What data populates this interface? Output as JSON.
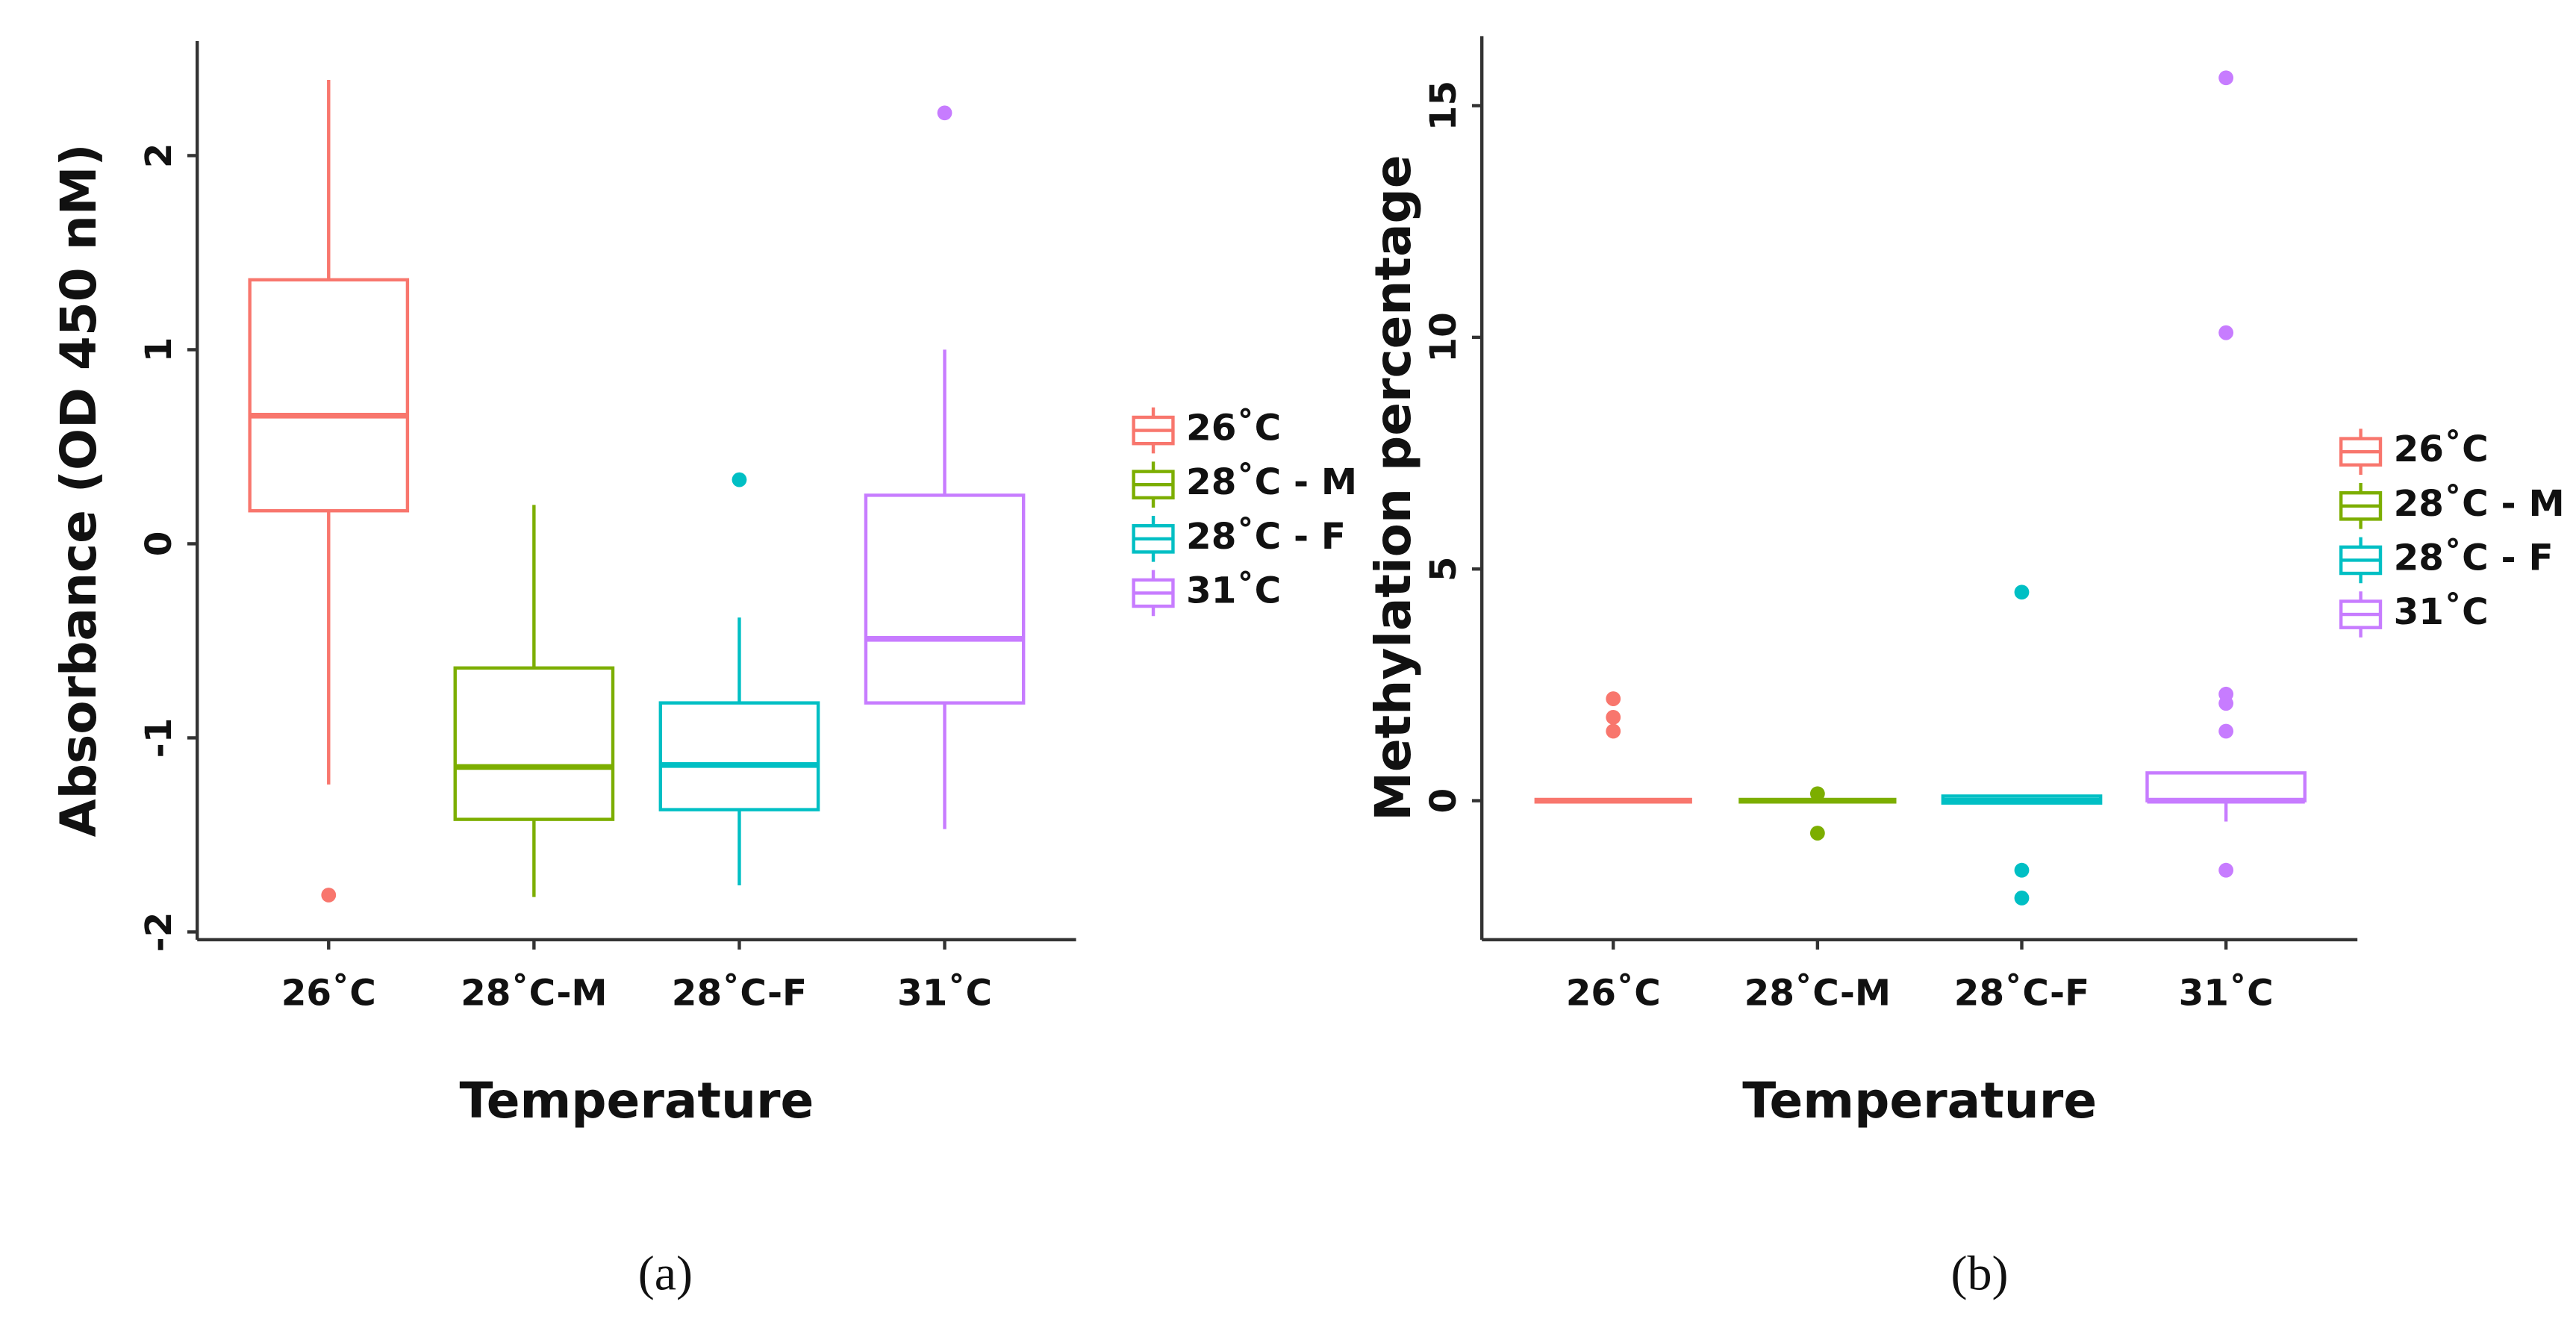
{
  "chart_data": [
    {
      "type": "box",
      "panel_label": "(a)",
      "ylabel": "Absorbance  (OD 450 nM)",
      "xlabel": "Temperature",
      "categories": [
        "26˚C",
        "28˚C-M",
        "28˚C-F",
        "31˚C"
      ],
      "legend": [
        "26˚C",
        "28˚C - M",
        "28˚C - F",
        "31˚C"
      ],
      "colors": [
        "#f8766d",
        "#7cae00",
        "#00bfc4",
        "#c77cff"
      ],
      "boxes": [
        {
          "min": -1.24,
          "q1": 0.17,
          "median": 0.66,
          "q3": 1.36,
          "max": 2.39,
          "outliers": [
            -1.81
          ]
        },
        {
          "min": -1.82,
          "q1": -1.42,
          "median": -1.15,
          "q3": -0.64,
          "max": 0.2,
          "outliers": []
        },
        {
          "min": -1.76,
          "q1": -1.37,
          "median": -1.14,
          "q3": -0.82,
          "max": -0.38,
          "outliers": [
            0.33
          ]
        },
        {
          "min": -1.47,
          "q1": -0.82,
          "median": -0.49,
          "q3": 0.25,
          "max": 1.0,
          "outliers": [
            2.22
          ]
        }
      ],
      "ylim": [
        -2.04,
        2.59
      ],
      "yticks": [
        -2,
        -1,
        0,
        1,
        2
      ]
    },
    {
      "type": "box",
      "panel_label": "(b)",
      "ylabel": "Methylation percentage",
      "xlabel": "Temperature",
      "categories": [
        "26˚C",
        "28˚C-M",
        "28˚C-F",
        "31˚C"
      ],
      "legend": [
        "26˚C",
        "28˚C - M",
        "28˚C - F",
        "31˚C"
      ],
      "colors": [
        "#f8766d",
        "#7cae00",
        "#00bfc4",
        "#c77cff"
      ],
      "boxes": [
        {
          "min": 0,
          "q1": 0,
          "median": 0,
          "q3": 0,
          "max": 0,
          "outliers": [
            2.2,
            1.8,
            1.5
          ]
        },
        {
          "min": 0,
          "q1": 0,
          "median": 0,
          "q3": 0,
          "max": 0,
          "outliers": [
            0.15,
            -0.7
          ]
        },
        {
          "min": -0.05,
          "q1": -0.05,
          "median": 0,
          "q3": 0.1,
          "max": 0.1,
          "outliers": [
            4.5,
            -1.5,
            -2.1
          ]
        },
        {
          "min": -0.45,
          "q1": 0,
          "median": 0,
          "q3": 0.6,
          "max": 0.6,
          "outliers": [
            15.6,
            10.1,
            2.3,
            2.1,
            1.5,
            -1.5
          ]
        }
      ],
      "ylim": [
        -3.0,
        16.5
      ],
      "yticks": [
        0,
        5,
        10,
        15
      ]
    }
  ]
}
